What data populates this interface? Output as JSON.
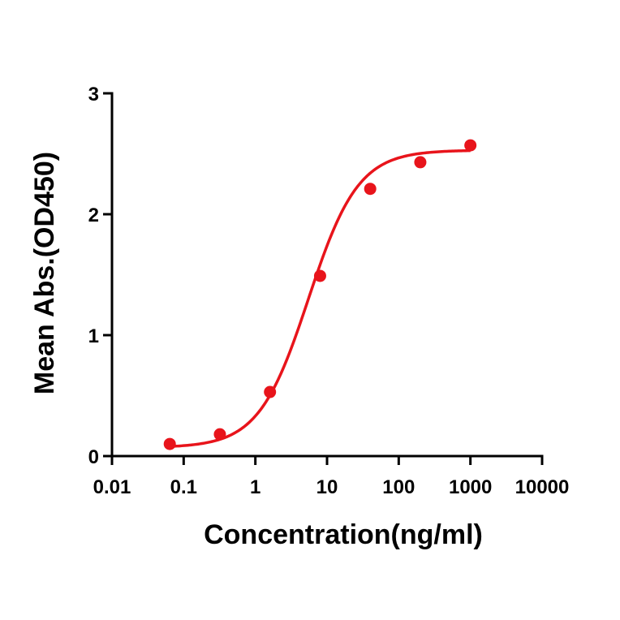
{
  "chart_data": {
    "type": "scatter",
    "title": "",
    "xlabel": "Concentration(ng/ml)",
    "ylabel": "Mean Abs.(OD450)",
    "x_scale": "log",
    "xlim": [
      0.01,
      10000
    ],
    "ylim": [
      0,
      3
    ],
    "x_ticks": [
      {
        "value": 0.01,
        "label": "0.01"
      },
      {
        "value": 0.1,
        "label": "0.1"
      },
      {
        "value": 1,
        "label": "1"
      },
      {
        "value": 10,
        "label": "10"
      },
      {
        "value": 100,
        "label": "100"
      },
      {
        "value": 1000,
        "label": "1000"
      },
      {
        "value": 10000,
        "label": "10000"
      }
    ],
    "y_ticks": [
      {
        "value": 0,
        "label": "0"
      },
      {
        "value": 1,
        "label": "1"
      },
      {
        "value": 2,
        "label": "2"
      },
      {
        "value": 3,
        "label": "3"
      }
    ],
    "grid": false,
    "legend": "none",
    "series": [
      {
        "color": "#e8141b",
        "points": [
          {
            "x": 0.064,
            "y": 0.1
          },
          {
            "x": 0.32,
            "y": 0.18
          },
          {
            "x": 1.6,
            "y": 0.53
          },
          {
            "x": 8,
            "y": 1.49
          },
          {
            "x": 40,
            "y": 2.21
          },
          {
            "x": 200,
            "y": 2.43
          },
          {
            "x": 1000,
            "y": 2.57
          }
        ],
        "fit": {
          "model": "4PL",
          "bottom": 0.07,
          "top": 2.53,
          "ec50": 5.5,
          "hill": 1.25
        }
      }
    ]
  }
}
